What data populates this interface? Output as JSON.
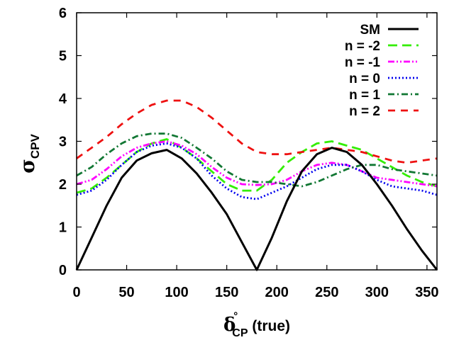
{
  "chart_data": {
    "type": "line",
    "xlabel": {
      "symbol": "δ",
      "degree": "°",
      "subscript": "CP",
      "suffix": " (true)"
    },
    "ylabel": {
      "symbol": "σ",
      "subscript": "CPV"
    },
    "xlim": [
      0,
      360
    ],
    "ylim": [
      0,
      6
    ],
    "xticks": [
      0,
      50,
      100,
      150,
      200,
      250,
      300,
      350
    ],
    "yticks": [
      0,
      1,
      2,
      3,
      4,
      5,
      6
    ],
    "grid": false,
    "legend_position": "top-right",
    "series": [
      {
        "name": "SM",
        "color": "#000000",
        "dash": "solid",
        "x": [
          0,
          15,
          30,
          45,
          60,
          75,
          90,
          105,
          120,
          135,
          150,
          165,
          180,
          195,
          210,
          225,
          240,
          255,
          270,
          285,
          300,
          315,
          330,
          345,
          360
        ],
        "y": [
          0.0,
          0.75,
          1.5,
          2.15,
          2.55,
          2.72,
          2.8,
          2.6,
          2.25,
          1.8,
          1.3,
          0.65,
          0.0,
          0.75,
          1.6,
          2.3,
          2.7,
          2.85,
          2.75,
          2.45,
          2.0,
          1.5,
          0.95,
          0.45,
          0.0
        ]
      },
      {
        "name": "n = -2",
        "color": "#33ee00",
        "dash": "longdash",
        "x": [
          0,
          15,
          30,
          45,
          60,
          75,
          90,
          105,
          120,
          135,
          150,
          165,
          180,
          195,
          210,
          225,
          240,
          255,
          270,
          285,
          300,
          315,
          330,
          345,
          360
        ],
        "y": [
          1.8,
          1.9,
          2.15,
          2.45,
          2.75,
          2.95,
          3.05,
          2.85,
          2.6,
          2.3,
          2.0,
          1.85,
          1.85,
          2.1,
          2.5,
          2.75,
          2.95,
          3.0,
          2.9,
          2.8,
          2.6,
          2.4,
          2.2,
          2.05,
          1.95
        ]
      },
      {
        "name": "n = -1",
        "color": "#ff00ff",
        "dash": "dashdotdot",
        "x": [
          0,
          15,
          30,
          45,
          60,
          75,
          90,
          105,
          120,
          135,
          150,
          165,
          180,
          195,
          210,
          225,
          240,
          255,
          270,
          285,
          300,
          315,
          330,
          345,
          360
        ],
        "y": [
          2.0,
          2.1,
          2.35,
          2.65,
          2.85,
          2.95,
          3.0,
          2.9,
          2.7,
          2.4,
          2.15,
          2.0,
          1.98,
          2.0,
          2.1,
          2.3,
          2.45,
          2.5,
          2.45,
          2.3,
          2.15,
          2.1,
          2.05,
          2.0,
          1.95
        ]
      },
      {
        "name": "n = 0",
        "color": "#0000ee",
        "dash": "dotted",
        "x": [
          0,
          15,
          30,
          45,
          60,
          75,
          90,
          105,
          120,
          135,
          150,
          165,
          180,
          195,
          210,
          225,
          240,
          255,
          270,
          285,
          300,
          315,
          330,
          345,
          360
        ],
        "y": [
          1.75,
          1.85,
          2.1,
          2.45,
          2.75,
          2.9,
          2.95,
          2.85,
          2.6,
          2.2,
          1.9,
          1.7,
          1.65,
          1.8,
          1.95,
          2.15,
          2.35,
          2.45,
          2.45,
          2.3,
          2.1,
          1.95,
          1.9,
          1.85,
          1.75
        ]
      },
      {
        "name": "n = 1",
        "color": "#117733",
        "dash": "dashdot",
        "x": [
          0,
          15,
          30,
          45,
          60,
          75,
          90,
          105,
          120,
          135,
          150,
          165,
          180,
          195,
          210,
          225,
          240,
          255,
          270,
          285,
          300,
          315,
          330,
          345,
          360
        ],
        "y": [
          2.2,
          2.4,
          2.7,
          2.95,
          3.12,
          3.18,
          3.18,
          3.08,
          2.85,
          2.6,
          2.3,
          2.1,
          2.05,
          2.05,
          2.0,
          1.95,
          2.05,
          2.2,
          2.35,
          2.45,
          2.45,
          2.35,
          2.3,
          2.25,
          2.2
        ]
      },
      {
        "name": "n = 2",
        "color": "#ee1111",
        "dash": "dashed",
        "x": [
          0,
          15,
          30,
          45,
          60,
          75,
          90,
          105,
          120,
          135,
          150,
          165,
          180,
          195,
          210,
          225,
          240,
          255,
          270,
          285,
          300,
          315,
          330,
          345,
          360
        ],
        "y": [
          2.6,
          2.85,
          3.1,
          3.4,
          3.65,
          3.85,
          3.95,
          3.95,
          3.8,
          3.55,
          3.25,
          2.95,
          2.75,
          2.7,
          2.7,
          2.75,
          2.8,
          2.85,
          2.8,
          2.75,
          2.65,
          2.55,
          2.5,
          2.55,
          2.6
        ]
      }
    ]
  }
}
